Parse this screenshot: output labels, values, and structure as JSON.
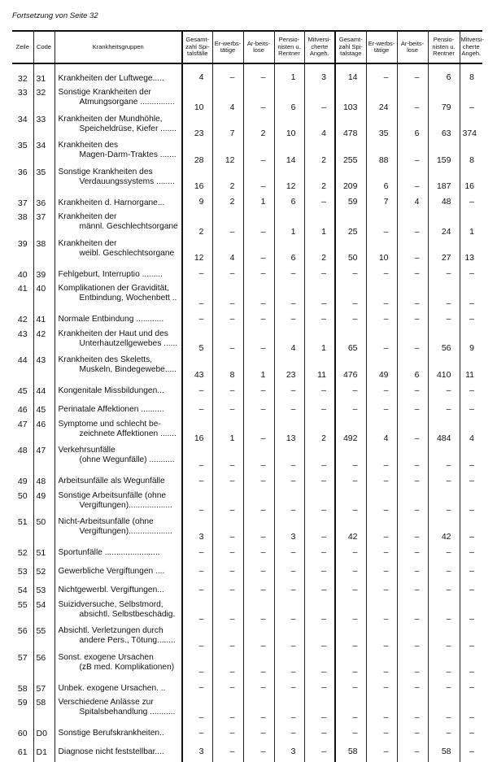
{
  "continuation_note": "Fortsetzung von Seite 32",
  "columns": [
    "Zeile",
    "Code",
    "Krankheitsgruppen",
    "Gesamt-zahl Spi-talsfälle",
    "Er-werbs-tätige",
    "Ar-beits-lose",
    "Pensio-nisten u. Rentner",
    "Mitversi-cherte Angeh.",
    "Gesamt-zahl Spi-talstage",
    "Er-werbs-tätige",
    "Ar-beits-lose",
    "Pensio-nisten u. Rentner",
    "Mitversi-cherte Angeh."
  ],
  "rows": [
    {
      "zeile": "32",
      "code": "31",
      "label": [
        "Krankheiten der Luftwege....."
      ],
      "values": [
        "4",
        "–",
        "–",
        "1",
        "3",
        "14",
        "–",
        "–",
        "6",
        "8"
      ]
    },
    {
      "zeile": "33",
      "code": "32",
      "label": [
        "Sonstige Krankheiten der",
        "Atmungsorgane ..............."
      ],
      "values": [
        "10",
        "4",
        "–",
        "6",
        "–",
        "103",
        "24",
        "–",
        "79",
        "–"
      ]
    },
    {
      "zeile": "34",
      "code": "33",
      "label": [
        "Krankheiten der Mundhöhle,",
        "Speicheldrüse, Kiefer ......."
      ],
      "values": [
        "23",
        "7",
        "2",
        "10",
        "4",
        "478",
        "35",
        "6",
        "63",
        "374"
      ]
    },
    {
      "zeile": "35",
      "code": "34",
      "label": [
        "Krankheiten des",
        "Magen-Darm-Traktes ......."
      ],
      "values": [
        "28",
        "12",
        "–",
        "14",
        "2",
        "255",
        "88",
        "–",
        "159",
        "8"
      ]
    },
    {
      "zeile": "36",
      "code": "35",
      "label": [
        "Sonstige Krankheiten des",
        "Verdauungssystems ........"
      ],
      "values": [
        "16",
        "2",
        "–",
        "12",
        "2",
        "209",
        "6",
        "–",
        "187",
        "16"
      ]
    },
    {
      "zeile": "37",
      "code": "36",
      "label": [
        "Krankheiten d. Harnorgane..."
      ],
      "values": [
        "9",
        "2",
        "1",
        "6",
        "–",
        "59",
        "7",
        "4",
        "48",
        "–"
      ]
    },
    {
      "zeile": "38",
      "code": "37",
      "label": [
        "Krankheiten der",
        "männl. Geschlechtsorgane"
      ],
      "values": [
        "2",
        "–",
        "–",
        "1",
        "1",
        "25",
        "–",
        "–",
        "24",
        "1"
      ]
    },
    {
      "zeile": "39",
      "code": "38",
      "label": [
        "Krankheiten der",
        "weibl.  Geschlechtsorgane"
      ],
      "values": [
        "12",
        "4",
        "–",
        "6",
        "2",
        "50",
        "10",
        "–",
        "27",
        "13"
      ]
    },
    {
      "zeile": "40",
      "code": "39",
      "label": [
        "Fehlgeburt, Interruptio ........."
      ],
      "values": [
        "–",
        "–",
        "–",
        "–",
        "–",
        "–",
        "–",
        "–",
        "–",
        "–"
      ]
    },
    {
      "zeile": "41",
      "code": "40",
      "label": [
        "Komplikationen der Gravidität,",
        "Entbindung, Wochenbett .."
      ],
      "values": [
        "–",
        "–",
        "–",
        "–",
        "–",
        "–",
        "–",
        "–",
        "–",
        "–"
      ]
    },
    {
      "zeile": "42",
      "code": "41",
      "label": [
        "Normale Entbindung ............"
      ],
      "values": [
        "–",
        "–",
        "–",
        "–",
        "–",
        "–",
        "–",
        "–",
        "–",
        "–"
      ]
    },
    {
      "zeile": "43",
      "code": "42",
      "label": [
        "Krankheiten der Haut und des",
        "Unterhautzellgewebes ......"
      ],
      "values": [
        "5",
        "–",
        "–",
        "4",
        "1",
        "65",
        "–",
        "–",
        "56",
        "9"
      ]
    },
    {
      "zeile": "44",
      "code": "43",
      "label": [
        "Krankheiten des Skeletts,",
        "Muskeln, Bindegewebe....."
      ],
      "values": [
        "43",
        "8",
        "1",
        "23",
        "11",
        "476",
        "49",
        "6",
        "410",
        "11"
      ]
    },
    {
      "zeile": "45",
      "code": "44",
      "label": [
        "Kongenitale Missbildungen..."
      ],
      "values": [
        "–",
        "–",
        "–",
        "–",
        "–",
        "–",
        "–",
        "–",
        "–",
        "–"
      ]
    },
    {
      "zeile": "46",
      "code": "45",
      "label": [
        "Perinatale Affektionen .........."
      ],
      "values": [
        "–",
        "–",
        "–",
        "–",
        "–",
        "–",
        "–",
        "–",
        "–",
        "–"
      ]
    },
    {
      "zeile": "47",
      "code": "46",
      "label": [
        "Symptome und schlecht be-",
        "zeichnete Affektionen ......."
      ],
      "values": [
        "16",
        "1",
        "–",
        "13",
        "2",
        "492",
        "4",
        "–",
        "484",
        "4"
      ]
    },
    {
      "zeile": "48",
      "code": "47",
      "label": [
        "Verkehrsunfälle",
        "(ohne Wegunfälle) ..........."
      ],
      "values": [
        "–",
        "–",
        "–",
        "–",
        "–",
        "–",
        "–",
        "–",
        "–",
        "–"
      ]
    },
    {
      "zeile": "49",
      "code": "48",
      "label": [
        "Arbeitsunfälle als Wegunfälle"
      ],
      "values": [
        "–",
        "–",
        "–",
        "–",
        "–",
        "–",
        "–",
        "–",
        "–",
        "–"
      ]
    },
    {
      "zeile": "50",
      "code": "49",
      "label": [
        "Sonstige Arbeitsunfälle (ohne",
        "Vergiftungen)..................."
      ],
      "values": [
        "–",
        "–",
        "–",
        "–",
        "–",
        "–",
        "–",
        "–",
        "–",
        "–"
      ]
    },
    {
      "zeile": "51",
      "code": "50",
      "label": [
        "Nicht-Arbeitsunfälle (ohne",
        "Vergiftungen)..................."
      ],
      "values": [
        "3",
        "–",
        "–",
        "3",
        "–",
        "42",
        "–",
        "–",
        "42",
        "–"
      ]
    },
    {
      "zeile": "52",
      "code": "51",
      "label": [
        "Sportunfälle ........................"
      ],
      "values": [
        "–",
        "–",
        "–",
        "–",
        "–",
        "–",
        "–",
        "–",
        "–",
        "–"
      ]
    },
    {
      "zeile": "53",
      "code": "52",
      "label": [
        "Gewerbliche Vergiftungen ...."
      ],
      "values": [
        "–",
        "–",
        "–",
        "–",
        "–",
        "–",
        "–",
        "–",
        "–",
        "–"
      ]
    },
    {
      "zeile": "54",
      "code": "53",
      "label": [
        "Nichtgewerbl. Vergiftungen..."
      ],
      "values": [
        "–",
        "–",
        "–",
        "–",
        "–",
        "–",
        "–",
        "–",
        "–",
        "–"
      ]
    },
    {
      "zeile": "55",
      "code": "54",
      "label": [
        "Suizidversuche, Selbstmord,",
        "absichtl. Selbstbeschädig."
      ],
      "values": [
        "–",
        "–",
        "–",
        "–",
        "–",
        "–",
        "–",
        "–",
        "–",
        "–"
      ]
    },
    {
      "zeile": "56",
      "code": "55",
      "label": [
        "Absichtl. Verletzungen durch",
        "andere Pers., Tötung........"
      ],
      "values": [
        "–",
        "–",
        "–",
        "–",
        "–",
        "–",
        "–",
        "–",
        "–",
        "–"
      ]
    },
    {
      "zeile": "57",
      "code": "56",
      "label": [
        "Sonst. exogene Ursachen",
        "(zB  med. Komplikationen)"
      ],
      "values": [
        "–",
        "–",
        "–",
        "–",
        "–",
        "–",
        "–",
        "–",
        "–",
        "–"
      ]
    },
    {
      "zeile": "58",
      "code": "57",
      "label": [
        "Unbek. exogene Ursachen. .."
      ],
      "values": [
        "–",
        "–",
        "–",
        "–",
        "–",
        "–",
        "–",
        "–",
        "–",
        "–"
      ]
    },
    {
      "zeile": "59",
      "code": "58",
      "label": [
        "Verschiedene Anlässe zur",
        "Spitalsbehandlung ..........."
      ],
      "values": [
        "–",
        "–",
        "–",
        "–",
        "–",
        "–",
        "–",
        "–",
        "–",
        "–"
      ]
    },
    {
      "zeile": "60",
      "code": "D0",
      "label": [
        "Sonstige Berufskrankheiten.."
      ],
      "values": [
        "–",
        "–",
        "–",
        "–",
        "–",
        "–",
        "–",
        "–",
        "–",
        "–"
      ]
    },
    {
      "zeile": "61",
      "code": "D1",
      "label": [
        "Diagnose nicht feststellbar...."
      ],
      "values": [
        "3",
        "–",
        "–",
        "3",
        "–",
        "58",
        "–",
        "–",
        "58",
        "–"
      ]
    }
  ]
}
